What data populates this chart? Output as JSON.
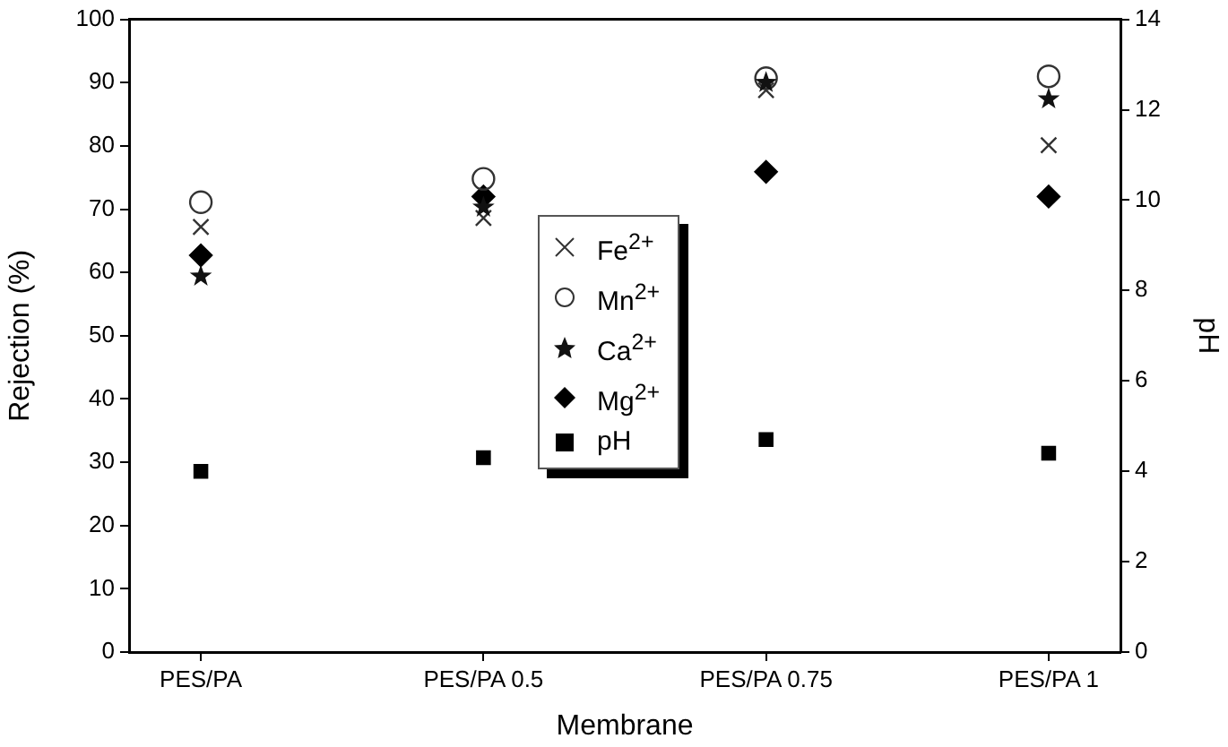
{
  "chart_data": {
    "type": "scatter",
    "xlabel": "Membrane",
    "ylabel": "Rejection (%)",
    "y2label": "pH",
    "categories": [
      "PES/PA",
      "PES/PA 0.5",
      "PES/PA 0.75",
      "PES/PA 1"
    ],
    "series": [
      {
        "name": "Fe$^{2+}$",
        "color": "#333333",
        "marker": "cross",
        "values": [
          67.2,
          68.6,
          88.8,
          80.1
        ]
      },
      {
        "name": "Mn$^{2+}$",
        "color": "#333333",
        "marker": "circle",
        "values": [
          71.1,
          74.8,
          90.7,
          91
        ]
      },
      {
        "name": "Ca$^{2+}$",
        "color": "#111111",
        "marker": "star",
        "values": [
          59.4,
          70.3,
          90,
          87.4
        ]
      },
      {
        "name": "Mg$^{2+}$",
        "color": "#000000",
        "marker": "diamond",
        "values": [
          62.7,
          72,
          75.9,
          72
        ]
      },
      {
        "name": "pH",
        "color": "#000000",
        "marker": "square",
        "axis": "y2",
        "values": [
          4.0,
          4.3,
          4.7,
          4.4
        ]
      }
    ],
    "ylim": [
      0,
      100
    ],
    "yticks": [
      0,
      10,
      20,
      30,
      40,
      50,
      60,
      70,
      80,
      90,
      100
    ],
    "y2lim": [
      0,
      14
    ],
    "y2ticks": [
      0,
      2,
      4,
      6,
      8,
      10,
      12,
      14
    ],
    "grid": false,
    "legend": "center"
  }
}
